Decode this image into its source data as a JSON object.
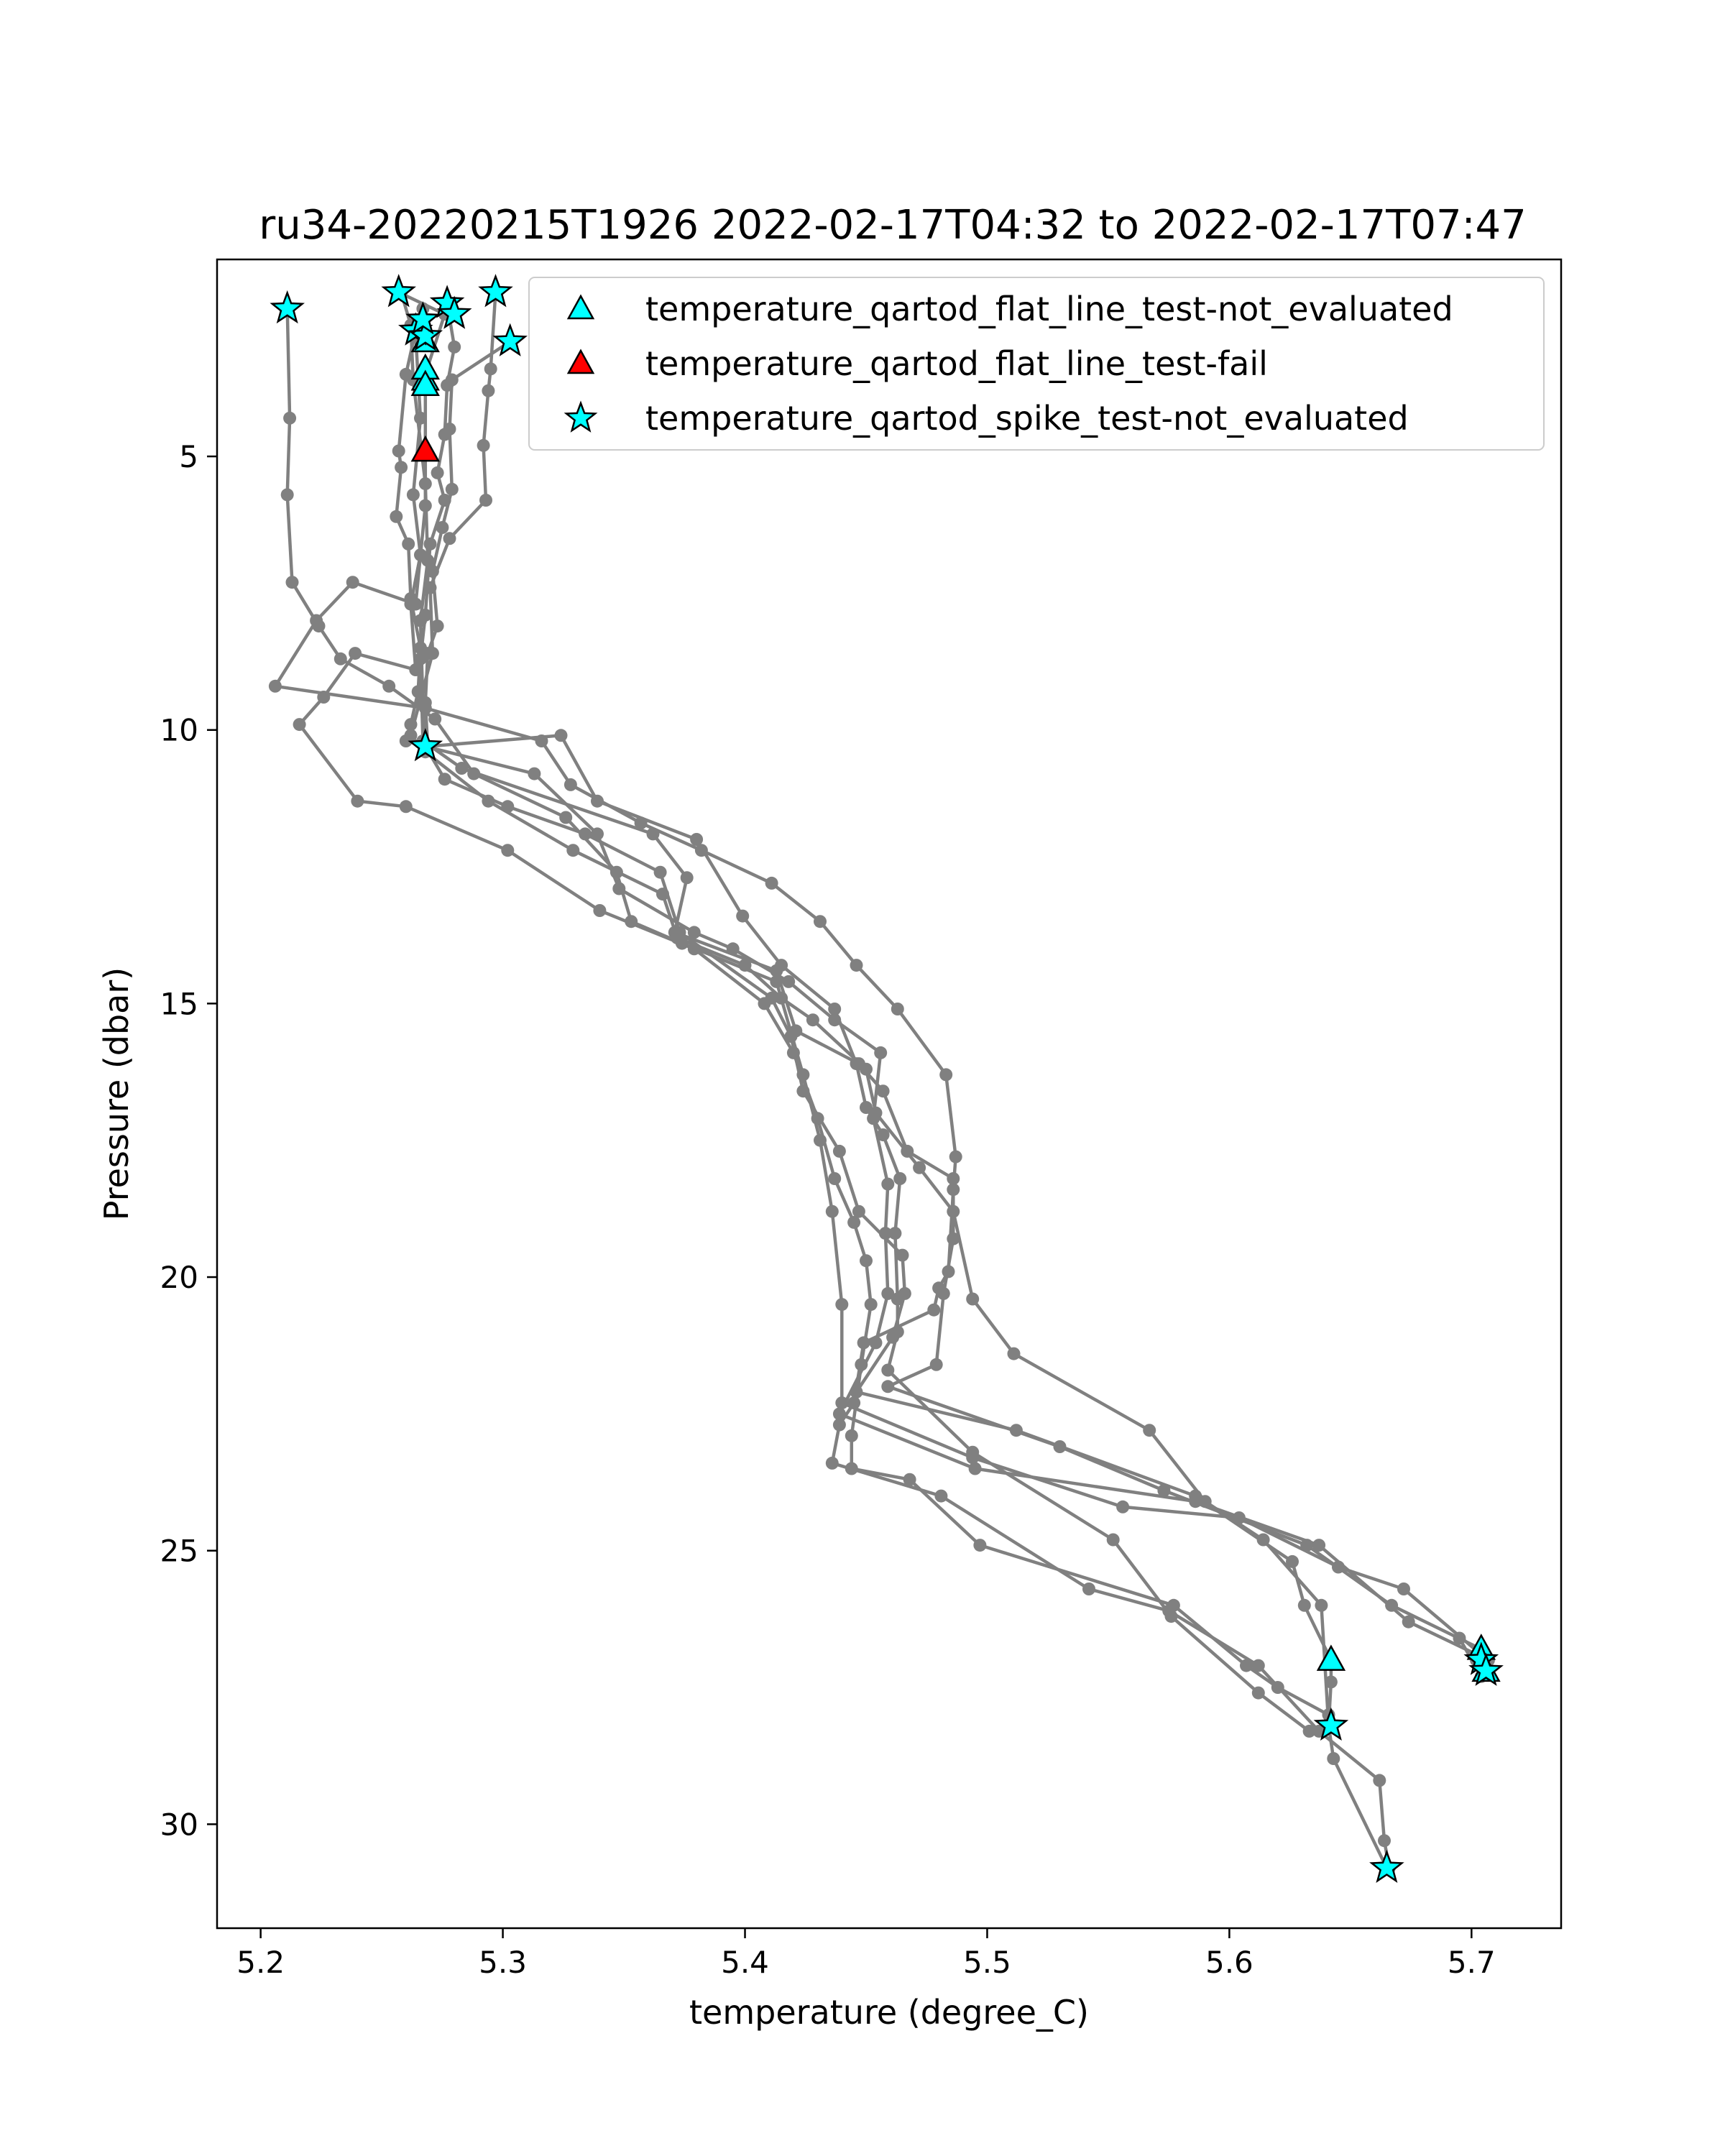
{
  "chart_data": {
    "type": "scatter",
    "title": "ru34-20220215T1926 2022-02-17T04:32 to 2022-02-17T07:47",
    "xlabel": "temperature (degree_C)",
    "ylabel": "Pressure (dbar)",
    "xlim": [
      5.182,
      5.737
    ],
    "ylim": [
      31.9,
      1.4
    ],
    "y_inverted": true,
    "xticks": [
      5.2,
      5.3,
      5.4,
      5.5,
      5.6,
      5.7
    ],
    "xtick_labels": [
      "5.2",
      "5.3",
      "5.4",
      "5.5",
      "5.6",
      "5.7"
    ],
    "yticks": [
      5,
      10,
      15,
      20,
      25,
      30
    ],
    "ytick_labels": [
      "5",
      "10",
      "15",
      "20",
      "25",
      "30"
    ],
    "grid": false,
    "legend_position": "top-right",
    "profile_color": "#808080",
    "profiles": [
      [
        [
          5.211,
          2.3
        ],
        [
          5.212,
          4.3
        ],
        [
          5.211,
          5.7
        ],
        [
          5.213,
          7.3
        ],
        [
          5.224,
          8.1
        ],
        [
          5.233,
          8.7
        ],
        [
          5.253,
          9.2
        ],
        [
          5.272,
          9.8
        ],
        [
          5.288,
          10.8
        ],
        [
          5.326,
          11.6
        ],
        [
          5.347,
          12.6
        ],
        [
          5.353,
          13.5
        ],
        [
          5.374,
          13.9
        ],
        [
          5.413,
          14.6
        ],
        [
          5.424,
          16.3
        ],
        [
          5.431,
          17.5
        ],
        [
          5.436,
          18.8
        ],
        [
          5.44,
          20.5
        ],
        [
          5.44,
          22.3
        ],
        [
          5.494,
          23.3
        ],
        [
          5.556,
          24.2
        ],
        [
          5.604,
          24.4
        ],
        [
          5.645,
          25.3
        ],
        [
          5.672,
          25.7
        ],
        [
          5.704,
          26.9
        ],
        [
          5.704,
          27.3
        ],
        [
          5.695,
          26.6
        ]
      ],
      [
        [
          5.258,
          2.0
        ],
        [
          5.262,
          2.6
        ],
        [
          5.263,
          3.6
        ],
        [
          5.268,
          5.5
        ],
        [
          5.269,
          6.9
        ],
        [
          5.266,
          8.0
        ],
        [
          5.267,
          9.5
        ],
        [
          5.268,
          10.3
        ],
        [
          5.276,
          10.9
        ],
        [
          5.302,
          11.4
        ],
        [
          5.334,
          11.9
        ],
        [
          5.365,
          12.6
        ],
        [
          5.373,
          13.7
        ],
        [
          5.411,
          14.9
        ],
        [
          5.419,
          15.6
        ],
        [
          5.424,
          16.6
        ],
        [
          5.439,
          17.7
        ],
        [
          5.447,
          18.8
        ],
        [
          5.465,
          19.6
        ],
        [
          5.466,
          20.3
        ],
        [
          5.461,
          21.1
        ],
        [
          5.446,
          22.1
        ],
        [
          5.512,
          22.8
        ],
        [
          5.586,
          24.0
        ],
        [
          5.626,
          25.2
        ],
        [
          5.631,
          26.0
        ],
        [
          5.642,
          27.0
        ],
        [
          5.642,
          27.4
        ],
        [
          5.641,
          28.2
        ]
      ],
      [
        [
          5.277,
          2.2
        ],
        [
          5.28,
          3.0
        ],
        [
          5.277,
          3.7
        ],
        [
          5.276,
          4.6
        ],
        [
          5.273,
          5.3
        ],
        [
          5.276,
          5.8
        ],
        [
          5.27,
          6.6
        ],
        [
          5.268,
          7.9
        ],
        [
          5.266,
          8.7
        ],
        [
          5.267,
          10.2
        ],
        [
          5.283,
          10.7
        ],
        [
          5.362,
          11.9
        ],
        [
          5.376,
          12.7
        ],
        [
          5.371,
          13.7
        ],
        [
          5.413,
          14.4
        ],
        [
          5.421,
          15.5
        ],
        [
          5.447,
          16.1
        ],
        [
          5.457,
          16.6
        ],
        [
          5.467,
          17.7
        ],
        [
          5.486,
          18.2
        ],
        [
          5.486,
          19.3
        ],
        [
          5.482,
          20.3
        ],
        [
          5.479,
          21.6
        ],
        [
          5.459,
          22.0
        ],
        [
          5.53,
          23.1
        ],
        [
          5.573,
          23.9
        ],
        [
          5.632,
          24.9
        ],
        [
          5.667,
          26.0
        ],
        [
          5.704,
          26.8
        ],
        [
          5.705,
          27.2
        ]
      ],
      [
        [
          5.297,
          2.0
        ],
        [
          5.295,
          3.4
        ],
        [
          5.294,
          3.8
        ],
        [
          5.292,
          4.8
        ],
        [
          5.293,
          5.8
        ],
        [
          5.278,
          6.5
        ],
        [
          5.27,
          7.4
        ],
        [
          5.271,
          8.6
        ],
        [
          5.262,
          10.1
        ],
        [
          5.268,
          10.4
        ],
        [
          5.294,
          11.3
        ],
        [
          5.329,
          12.2
        ],
        [
          5.366,
          13.0
        ],
        [
          5.372,
          13.8
        ],
        [
          5.4,
          14.3
        ],
        [
          5.415,
          14.9
        ],
        [
          5.428,
          15.3
        ],
        [
          5.45,
          16.2
        ],
        [
          5.454,
          17.0
        ],
        [
          5.472,
          18.0
        ],
        [
          5.486,
          18.8
        ],
        [
          5.494,
          20.4
        ],
        [
          5.511,
          21.4
        ],
        [
          5.567,
          22.8
        ],
        [
          5.59,
          24.1
        ],
        [
          5.614,
          24.8
        ],
        [
          5.638,
          26.0
        ],
        [
          5.641,
          28.2
        ],
        [
          5.643,
          28.8
        ],
        [
          5.665,
          30.8
        ]
      ],
      [
        [
          5.303,
          2.9
        ],
        [
          5.279,
          3.6
        ],
        [
          5.278,
          4.5
        ],
        [
          5.279,
          5.6
        ],
        [
          5.275,
          6.3
        ],
        [
          5.271,
          7.1
        ],
        [
          5.273,
          8.1
        ],
        [
          5.269,
          8.6
        ],
        [
          5.268,
          9.5
        ],
        [
          5.269,
          10.3
        ],
        [
          5.324,
          10.1
        ],
        [
          5.339,
          11.3
        ],
        [
          5.38,
          12.0
        ],
        [
          5.399,
          13.4
        ],
        [
          5.415,
          14.3
        ],
        [
          5.437,
          15.1
        ],
        [
          5.446,
          16.1
        ],
        [
          5.45,
          16.9
        ],
        [
          5.457,
          17.4
        ],
        [
          5.464,
          18.2
        ],
        [
          5.462,
          19.2
        ],
        [
          5.463,
          20.4
        ],
        [
          5.463,
          21.0
        ],
        [
          5.459,
          21.7
        ],
        [
          5.494,
          23.2
        ],
        [
          5.552,
          24.8
        ],
        [
          5.576,
          26.2
        ],
        [
          5.612,
          27.6
        ],
        [
          5.633,
          28.3
        ],
        [
          5.642,
          28.2
        ]
      ],
      [
        [
          5.264,
          2.7
        ],
        [
          5.26,
          3.5
        ],
        [
          5.257,
          4.9
        ],
        [
          5.258,
          5.2
        ],
        [
          5.256,
          6.1
        ],
        [
          5.261,
          6.6
        ],
        [
          5.262,
          7.6
        ],
        [
          5.266,
          8.5
        ],
        [
          5.265,
          9.3
        ],
        [
          5.262,
          9.9
        ],
        [
          5.26,
          10.2
        ],
        [
          5.268,
          10.3
        ],
        [
          5.313,
          10.8
        ],
        [
          5.339,
          11.9
        ],
        [
          5.348,
          12.9
        ],
        [
          5.379,
          13.7
        ],
        [
          5.395,
          14.0
        ],
        [
          5.418,
          14.6
        ],
        [
          5.437,
          15.3
        ],
        [
          5.456,
          15.9
        ],
        [
          5.453,
          17.1
        ],
        [
          5.459,
          18.3
        ],
        [
          5.458,
          19.2
        ],
        [
          5.459,
          20.3
        ],
        [
          5.454,
          21.2
        ],
        [
          5.439,
          22.5
        ],
        [
          5.495,
          23.5
        ],
        [
          5.586,
          24.1
        ],
        [
          5.637,
          24.9
        ],
        [
          5.674,
          26.3
        ],
        [
          5.707,
          27.0
        ],
        [
          5.706,
          27.2
        ],
        [
          5.702,
          27.0
        ]
      ],
      [
        [
          5.257,
          2.0
        ],
        [
          5.276,
          2.4
        ],
        [
          5.268,
          3.5
        ],
        [
          5.268,
          4.9
        ],
        [
          5.268,
          5.9
        ],
        [
          5.264,
          7.7
        ],
        [
          5.238,
          7.3
        ],
        [
          5.223,
          8.0
        ],
        [
          5.206,
          9.2
        ],
        [
          5.268,
          9.6
        ],
        [
          5.316,
          10.2
        ],
        [
          5.328,
          11.0
        ],
        [
          5.357,
          11.7
        ],
        [
          5.382,
          12.2
        ],
        [
          5.411,
          12.8
        ],
        [
          5.431,
          13.5
        ],
        [
          5.446,
          14.3
        ],
        [
          5.463,
          15.1
        ],
        [
          5.483,
          16.3
        ],
        [
          5.487,
          17.8
        ],
        [
          5.486,
          18.4
        ],
        [
          5.484,
          19.9
        ],
        [
          5.48,
          20.2
        ],
        [
          5.478,
          20.6
        ],
        [
          5.449,
          21.2
        ],
        [
          5.445,
          22.3
        ],
        [
          5.439,
          22.7
        ],
        [
          5.436,
          23.4
        ],
        [
          5.481,
          24.0
        ],
        [
          5.542,
          25.7
        ],
        [
          5.575,
          26.1
        ],
        [
          5.612,
          27.1
        ],
        [
          5.637,
          28.3
        ],
        [
          5.662,
          29.2
        ],
        [
          5.664,
          30.3
        ],
        [
          5.666,
          30.8
        ]
      ],
      [
        [
          5.267,
          2.3
        ],
        [
          5.264,
          2.8
        ],
        [
          5.266,
          4.3
        ],
        [
          5.263,
          5.7
        ],
        [
          5.266,
          6.8
        ],
        [
          5.262,
          7.7
        ],
        [
          5.264,
          8.9
        ],
        [
          5.239,
          8.6
        ],
        [
          5.226,
          9.4
        ],
        [
          5.216,
          9.9
        ],
        [
          5.24,
          11.3
        ],
        [
          5.26,
          11.4
        ],
        [
          5.302,
          12.2
        ],
        [
          5.34,
          13.3
        ],
        [
          5.379,
          14.0
        ],
        [
          5.408,
          15.0
        ],
        [
          5.42,
          15.9
        ],
        [
          5.43,
          17.1
        ],
        [
          5.437,
          18.2
        ],
        [
          5.445,
          19.0
        ],
        [
          5.45,
          19.7
        ],
        [
          5.452,
          20.5
        ],
        [
          5.448,
          21.6
        ],
        [
          5.444,
          22.9
        ],
        [
          5.444,
          23.5
        ],
        [
          5.468,
          23.7
        ],
        [
          5.497,
          24.9
        ],
        [
          5.577,
          26.0
        ],
        [
          5.607,
          27.1
        ],
        [
          5.62,
          27.5
        ],
        [
          5.641,
          28.0
        ],
        [
          5.642,
          28.2
        ]
      ]
    ],
    "series": [
      {
        "name": "temperature_qartod_flat_line_test-not_evaluated",
        "marker": "triangle",
        "color": "#00ffff",
        "x": [
          5.268,
          5.268,
          5.268,
          5.268,
          5.642,
          5.704,
          5.706
        ],
        "y": [
          2.9,
          3.6,
          3.4,
          3.7,
          27.0,
          26.8,
          27.2
        ]
      },
      {
        "name": "temperature_qartod_flat_line_test-fail",
        "marker": "triangle",
        "color": "#ff0000",
        "x": [
          5.268
        ],
        "y": [
          4.9
        ]
      },
      {
        "name": "temperature_qartod_spike_test-not_evaluated",
        "marker": "star",
        "color": "#00ffff",
        "x": [
          5.211,
          5.257,
          5.297,
          5.264,
          5.268,
          5.267,
          5.277,
          5.28,
          5.303,
          5.268,
          5.642,
          5.704,
          5.706,
          5.665
        ],
        "y": [
          2.3,
          2.0,
          2.0,
          2.7,
          2.8,
          2.5,
          2.2,
          2.4,
          2.9,
          10.3,
          28.2,
          27.0,
          27.2,
          30.8
        ]
      }
    ]
  }
}
